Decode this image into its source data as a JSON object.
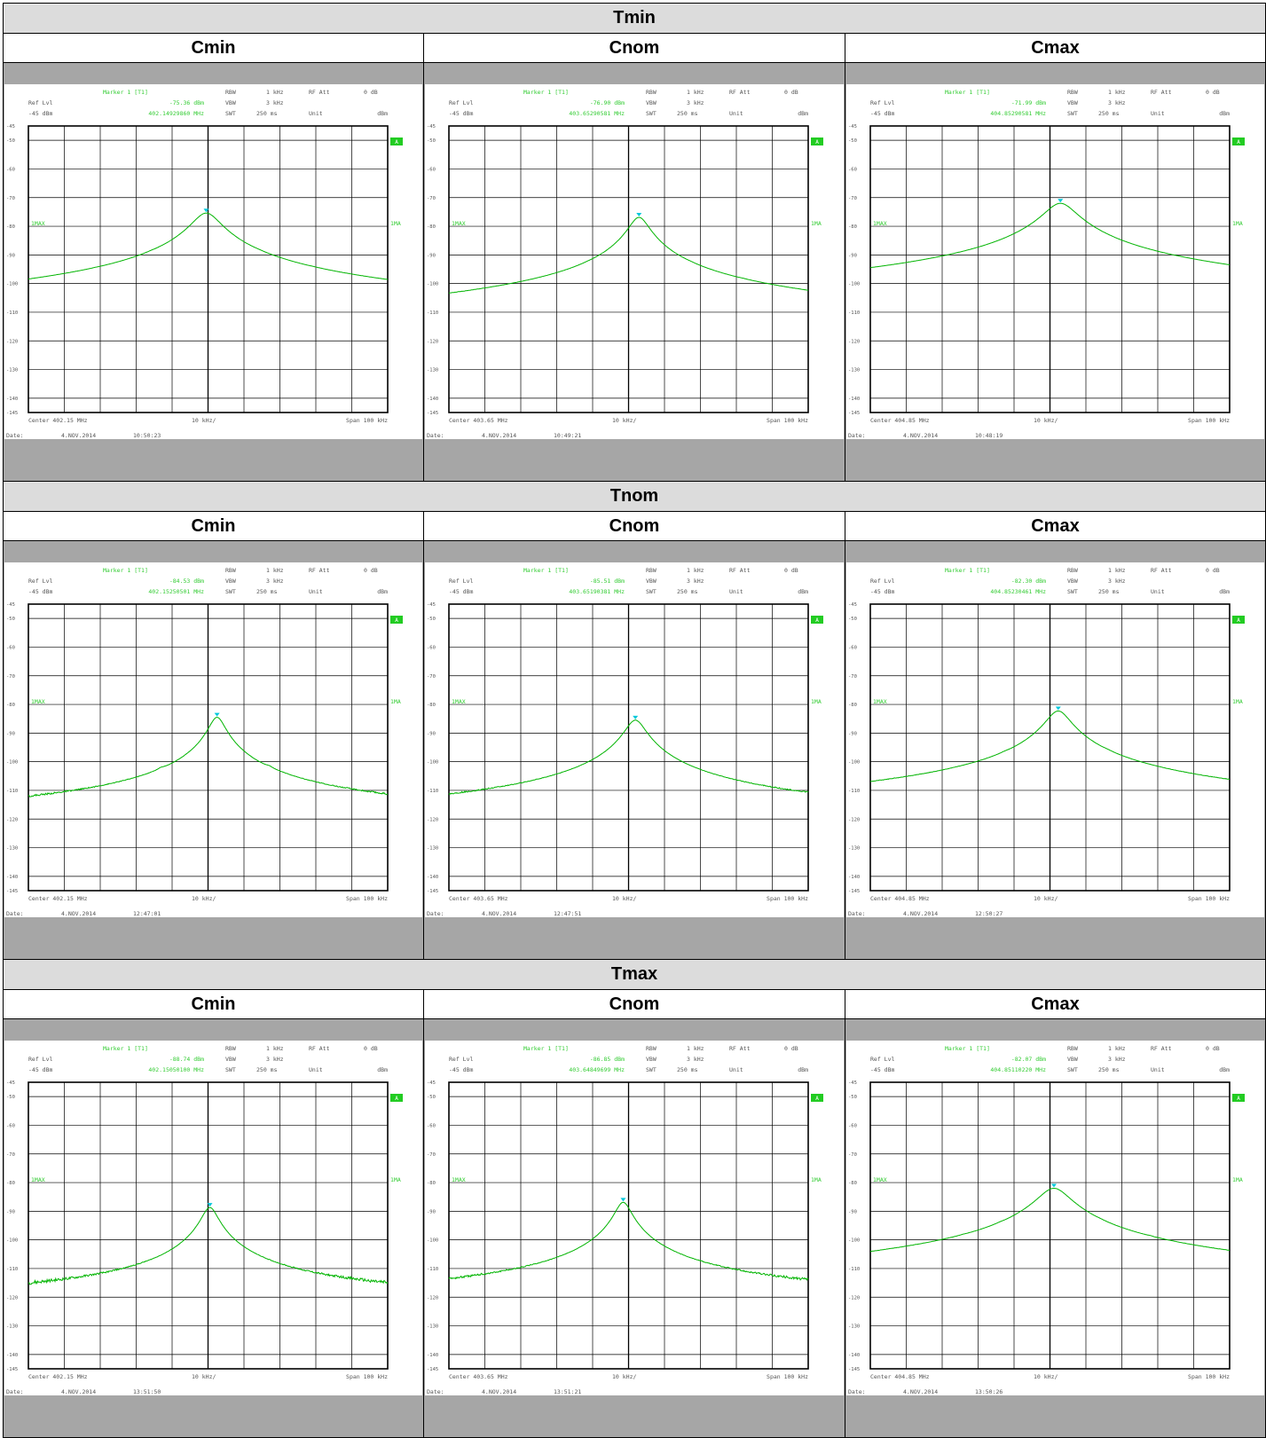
{
  "colors": {
    "trace": "#00b400",
    "marker": "#00c8dc",
    "info_green": "#33cc33",
    "band": "#a6a6a6",
    "header_bg": "#dcdcdc"
  },
  "temperatures": [
    "Tmin",
    "Tnom",
    "Tmax"
  ],
  "capacitances": [
    "Cmin",
    "Cnom",
    "Cmax"
  ],
  "common": {
    "marker_label": "Marker 1 [T1]",
    "ref_lvl_label": "Ref Lvl",
    "ref_lvl": "-45 dBm",
    "rbw_label": "RBW",
    "rbw": "1 kHz",
    "vbw_label": "VBW",
    "vbw": "3 kHz",
    "swt_label": "SWT",
    "swt": "250 ms",
    "rfatt_label": "RF Att",
    "rfatt": "0 dB",
    "unit_label": "Unit",
    "unit": "dBm",
    "div_label": "10 kHz/",
    "span_label": "Span 100 kHz",
    "date_label": "Date:",
    "a_badge": "A",
    "trace_label_left": "1MAX",
    "trace_label_right": "1MA",
    "y_ticks": [
      "-45",
      "-50",
      "-60",
      "-70",
      "-80",
      "-90",
      "-100",
      "-110",
      "-120",
      "-130",
      "-140",
      "-145"
    ]
  },
  "chart_data": [
    {
      "type": "line",
      "temperature": "Tmin",
      "capacitance": "Cmin",
      "marker_level": "-75.36 dBm",
      "marker_freq": "402.14929860 MHz",
      "center_label": "Center 402.15 MHz",
      "date": "4.NOV.2014",
      "time": "10:50:23",
      "xlim": [
        -50,
        50
      ],
      "ylim": [
        -145,
        -45
      ],
      "x_unit": "kHz offset from center",
      "y_unit": "dBm",
      "noise_floor": -119.5,
      "peaks": [
        [
          -0.5,
          -75.4,
          3.5
        ],
        [
          -16,
          -106,
          1.5
        ],
        [
          14,
          -106.5,
          1.5
        ],
        [
          29,
          -114,
          0.8
        ],
        [
          -31,
          -116,
          0.8
        ]
      ],
      "markers": [
        {
          "x": -0.5,
          "y": -75.4
        }
      ]
    },
    {
      "type": "line",
      "temperature": "Tmin",
      "capacitance": "Cnom",
      "marker_level": "-76.90 dBm",
      "marker_freq": "403.65290581 MHz",
      "center_label": "Center 403.65 MHz",
      "date": "4.NOV.2014",
      "time": "10:49:21",
      "xlim": [
        -50,
        50
      ],
      "ylim": [
        -145,
        -45
      ],
      "x_unit": "kHz offset from center",
      "y_unit": "dBm",
      "noise_floor": -119.5,
      "peaks": [
        [
          2.9,
          -76.9,
          2.5
        ],
        [
          -11.5,
          -112,
          1.2
        ],
        [
          17.5,
          -112,
          1.2
        ],
        [
          32,
          -117,
          0.8
        ]
      ],
      "markers": [
        {
          "x": 2.9,
          "y": -76.9
        }
      ]
    },
    {
      "type": "line",
      "temperature": "Tmin",
      "capacitance": "Cmax",
      "marker_level": "-71.99 dBm",
      "marker_freq": "404.85290581 MHz",
      "center_label": "Center 404.85 MHz",
      "date": "4.NOV.2014",
      "time": "10:48:19",
      "xlim": [
        -50,
        50
      ],
      "ylim": [
        -145,
        -45
      ],
      "x_unit": "kHz offset from center",
      "y_unit": "dBm",
      "noise_floor": -118.5,
      "peaks": [
        [
          2.9,
          -72,
          4
        ],
        [
          -11,
          -110,
          1.2
        ],
        [
          17,
          -111,
          1.2
        ],
        [
          -26,
          -116,
          0.8
        ]
      ],
      "markers": [
        {
          "x": 2.9,
          "y": -72
        }
      ]
    },
    {
      "type": "line",
      "temperature": "Tnom",
      "capacitance": "Cmin",
      "marker_level": "-84.53 dBm",
      "marker_freq": "402.15250501 MHz",
      "center_label": "Center 402.15 MHz",
      "date": "4.NOV.2014",
      "time": "12:47:01",
      "xlim": [
        -50,
        50
      ],
      "ylim": [
        -145,
        -45
      ],
      "x_unit": "kHz offset from center",
      "y_unit": "dBm",
      "noise_floor": -119.5,
      "peaks": [
        [
          2.5,
          -84.5,
          2
        ],
        [
          -13,
          -112.5,
          1
        ],
        [
          17,
          -112,
          1
        ],
        [
          -6,
          -117,
          0.8
        ],
        [
          10,
          -116,
          0.8
        ]
      ],
      "markers": [
        {
          "x": 2.5,
          "y": -84.5
        }
      ]
    },
    {
      "type": "line",
      "temperature": "Tnom",
      "capacitance": "Cnom",
      "marker_level": "-85.51 dBm",
      "marker_freq": "403.65190381 MHz",
      "center_label": "Center 403.65 MHz",
      "date": "4.NOV.2014",
      "time": "12:47:51",
      "xlim": [
        -50,
        50
      ],
      "ylim": [
        -145,
        -45
      ],
      "x_unit": "kHz offset from center",
      "y_unit": "dBm",
      "noise_floor": -120,
      "peaks": [
        [
          1.9,
          -85.5,
          2.5
        ]
      ],
      "markers": [
        {
          "x": 1.9,
          "y": -85.5
        }
      ]
    },
    {
      "type": "line",
      "temperature": "Tnom",
      "capacitance": "Cmax",
      "marker_level": "-82.30 dBm",
      "marker_freq": "404.85230461 MHz",
      "center_label": "Center 404.85 MHz",
      "date": "4.NOV.2014",
      "time": "12:50:27",
      "xlim": [
        -50,
        50
      ],
      "ylim": [
        -145,
        -45
      ],
      "x_unit": "kHz offset from center",
      "y_unit": "dBm",
      "noise_floor": -119.5,
      "peaks": [
        [
          2.3,
          -82.3,
          3
        ],
        [
          -12.5,
          -111.5,
          1.2
        ],
        [
          16,
          -111.5,
          1.2
        ]
      ],
      "markers": [
        {
          "x": 2.3,
          "y": -82.3
        }
      ]
    },
    {
      "type": "line",
      "temperature": "Tmax",
      "capacitance": "Cmin",
      "marker_level": "-88.74 dBm",
      "marker_freq": "402.15050100 MHz",
      "center_label": "Center 402.15 MHz",
      "date": "4.NOV.2014",
      "time": "13:51:50",
      "xlim": [
        -50,
        50
      ],
      "ylim": [
        -145,
        -45
      ],
      "x_unit": "kHz offset from center",
      "y_unit": "dBm",
      "noise_floor": -120,
      "peaks": [
        [
          0.5,
          -88.7,
          2
        ]
      ],
      "markers": [
        {
          "x": 0.5,
          "y": -88.7
        }
      ]
    },
    {
      "type": "line",
      "temperature": "Tmax",
      "capacitance": "Cnom",
      "marker_level": "-86.85 dBm",
      "marker_freq": "403.64849699 MHz",
      "center_label": "Center 403.65 MHz",
      "date": "4.NOV.2014",
      "time": "13:51:21",
      "xlim": [
        -50,
        50
      ],
      "ylim": [
        -145,
        -45
      ],
      "x_unit": "kHz offset from center",
      "y_unit": "dBm",
      "noise_floor": -120,
      "peaks": [
        [
          -1.5,
          -86.9,
          2
        ]
      ],
      "markers": [
        {
          "x": -1.5,
          "y": -86.9
        }
      ]
    },
    {
      "type": "line",
      "temperature": "Tmax",
      "capacitance": "Cmax",
      "marker_level": "-82.07 dBm",
      "marker_freq": "404.85110220 MHz",
      "center_label": "Center 404.85 MHz",
      "date": "4.NOV.2014",
      "time": "13:50:26",
      "xlim": [
        -50,
        50
      ],
      "ylim": [
        -145,
        -45
      ],
      "x_unit": "kHz offset from center",
      "y_unit": "dBm",
      "noise_floor": -119.5,
      "peaks": [
        [
          1.1,
          -82,
          4
        ],
        [
          -14,
          -110,
          1.2
        ],
        [
          14,
          -110,
          1.2
        ],
        [
          28,
          -115,
          0.8
        ],
        [
          -24,
          -116,
          0.8
        ]
      ],
      "markers": [
        {
          "x": 1.1,
          "y": -82
        }
      ]
    }
  ]
}
